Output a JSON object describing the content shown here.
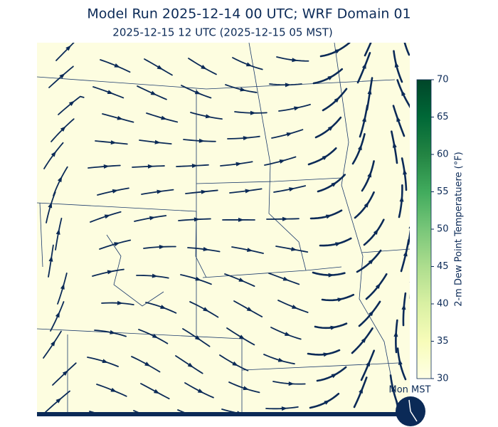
{
  "header": {
    "title": "Model Run 2025-12-14 00 UTC; WRF Domain 01",
    "subtitle": "2025-12-15 12 UTC  (2025-12-15 05 MST)"
  },
  "colorbar": {
    "label": "2-m Dew Point Temperatuere (°F)",
    "lim": [
      30,
      70
    ],
    "ticks": [
      30,
      35,
      40,
      45,
      50,
      55,
      60,
      65,
      70
    ],
    "colors": [
      "#ffffe5",
      "#f7fcb9",
      "#d9f0a3",
      "#addd8e",
      "#78c679",
      "#41ab5d",
      "#238443",
      "#006837",
      "#004529"
    ]
  },
  "clock": {
    "label": "Mon MST"
  }
}
